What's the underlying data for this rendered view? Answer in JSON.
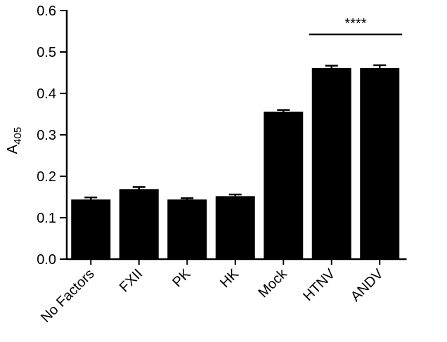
{
  "chart_data": {
    "type": "bar",
    "ylabel": {
      "text": "A",
      "subscript": "405"
    },
    "categories": [
      "No Factors",
      "FXII",
      "PK",
      "HK",
      "Mock",
      "HTNV",
      "ANDV"
    ],
    "values": [
      0.144,
      0.169,
      0.144,
      0.152,
      0.356,
      0.461,
      0.461
    ],
    "errors": [
      0.005,
      0.005,
      0.003,
      0.004,
      0.004,
      0.006,
      0.007
    ],
    "color": "#000000",
    "annotation": "****",
    "ylim": [
      0,
      0.6
    ],
    "yticks": [
      {
        "value": 0,
        "label": "0.0"
      },
      0.1,
      0.2,
      0.3,
      0.4,
      0.5,
      0.6
    ]
  }
}
